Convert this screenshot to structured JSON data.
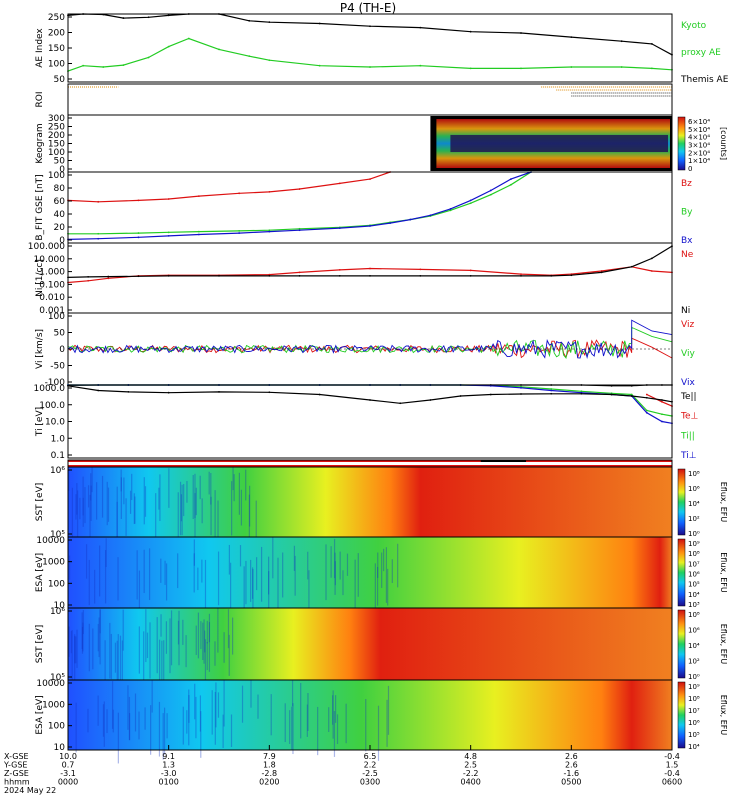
{
  "title": "P4 (TH-E)",
  "footer": {
    "row_labels": [
      "X-GSE",
      "Y-GSE",
      "Z-GSE",
      "hhmm",
      "2024 May 22"
    ],
    "columns": [
      [
        "10.0",
        "0.7",
        "-3.1",
        "0000"
      ],
      [
        "9.1",
        "1.3",
        "-3.0",
        "0100"
      ],
      [
        "7.9",
        "1.8",
        "-2.8",
        "0200"
      ],
      [
        "6.5",
        "2.2",
        "-2.5",
        "0300"
      ],
      [
        "4.8",
        "2.5",
        "-2.2",
        "0400"
      ],
      [
        "2.6",
        "2.6",
        "-1.6",
        "0500"
      ],
      [
        "-0.4",
        "1.5",
        "-0.4",
        "0600"
      ]
    ]
  },
  "colors": {
    "black": "#000000",
    "green": "#22cc22",
    "red": "#dd1111",
    "blue": "#1111cc"
  },
  "chart_data": [
    {
      "id": "ae",
      "type": "line",
      "ylabel": "AE Index",
      "ylim": [
        0,
        250
      ],
      "ticks": [
        "250",
        "200",
        "150",
        "100",
        "50"
      ],
      "x": [
        0,
        0.15,
        0.35,
        0.55,
        0.8,
        1.0,
        1.2,
        1.5,
        1.8,
        2.0,
        2.5,
        3.0,
        3.5,
        4.0,
        4.5,
        5.0,
        5.5,
        5.8,
        6.0
      ],
      "series": [
        {
          "name": "Themis AE",
          "color": "#000000",
          "values": [
            245,
            255,
            248,
            235,
            238,
            245,
            252,
            250,
            225,
            220,
            215,
            205,
            200,
            185,
            180,
            165,
            150,
            140,
            100
          ]
        },
        {
          "name": "Kyoto proxy AE",
          "color": "#22cc22",
          "values": [
            40,
            60,
            55,
            62,
            90,
            130,
            160,
            120,
            95,
            80,
            60,
            55,
            60,
            50,
            50,
            55,
            55,
            50,
            45
          ]
        }
      ],
      "legend": [
        {
          "text": "Kyoto",
          "color": "#22cc22"
        },
        {
          "text": "proxy AE",
          "color": "#22cc22"
        },
        {
          "text": "Themis AE",
          "color": "#000000"
        }
      ]
    },
    {
      "id": "roi",
      "type": "bar",
      "ylabel": "ROI",
      "ticks": [],
      "segments": [
        {
          "x0": 0.0,
          "x1": 0.5,
          "row": 0,
          "color": "#dd8800"
        },
        {
          "x0": 4.7,
          "x1": 6.0,
          "row": 0,
          "color": "#dd8800"
        },
        {
          "x0": 4.85,
          "x1": 6.0,
          "row": 1,
          "color": "#dd8800"
        },
        {
          "x0": 5.0,
          "x1": 6.0,
          "row": 2,
          "color": "#333333"
        },
        {
          "x0": 5.0,
          "x1": 6.0,
          "row": 3,
          "color": "#333333"
        }
      ]
    },
    {
      "id": "keogram",
      "type": "heatmap",
      "ylabel": "Keogram",
      "ylim": [
        0,
        300
      ],
      "ticks": [
        "300",
        "250",
        "200",
        "150",
        "100",
        "50",
        "0"
      ],
      "data_window": [
        3.6,
        6.0
      ],
      "colorbar_ticks": [
        "6×10⁴",
        "5×10⁴",
        "4×10⁴",
        "3×10⁴",
        "2×10⁴",
        "1×10⁴",
        "0"
      ],
      "colorbar_label": "[counts]"
    },
    {
      "id": "bfit",
      "type": "line",
      "ylabel": "B_FIT GSE [nT]",
      "ylim": [
        0,
        100
      ],
      "ticks": [
        "100",
        "80",
        "60",
        "40",
        "20",
        "0"
      ],
      "x": [
        0,
        0.3,
        0.7,
        1.0,
        1.3,
        1.7,
        2.0,
        2.3,
        2.7,
        3.0,
        3.2,
        3.4,
        3.6,
        3.8,
        4.0,
        4.2,
        4.4,
        4.6
      ],
      "series": [
        {
          "name": "Bz",
          "color": "#dd1111",
          "values": [
            60,
            58,
            60,
            62,
            66,
            70,
            72,
            76,
            84,
            90,
            100,
            null,
            null,
            null,
            null,
            null,
            null,
            null
          ]
        },
        {
          "name": "By",
          "color": "#22cc22",
          "values": [
            13,
            13,
            14,
            15,
            16,
            17,
            18,
            20,
            22,
            25,
            29,
            33,
            38,
            46,
            56,
            68,
            82,
            100
          ]
        },
        {
          "name": "Bx",
          "color": "#1111cc",
          "values": [
            5,
            6,
            8,
            10,
            12,
            14,
            16,
            18,
            21,
            24,
            28,
            33,
            39,
            48,
            60,
            74,
            90,
            100
          ]
        }
      ],
      "legend": [
        {
          "text": "Bz",
          "color": "#dd1111"
        },
        {
          "text": "By",
          "color": "#22cc22"
        },
        {
          "text": "Bx",
          "color": "#1111cc"
        }
      ]
    },
    {
      "id": "ni",
      "type": "line",
      "ylabel": "Ni [1/cc]",
      "scale": "log",
      "ylim": [
        0.001,
        100
      ],
      "ticks": [
        "100.000",
        "10.000",
        "1.000",
        "0.100",
        "0.010",
        "0.001"
      ],
      "x": [
        0,
        0.2,
        0.4,
        0.7,
        1.0,
        1.5,
        2.0,
        2.3,
        2.7,
        3.0,
        3.5,
        4.0,
        4.5,
        4.8,
        5.0,
        5.3,
        5.6,
        5.8,
        6.0
      ],
      "series": [
        {
          "name": "Ne",
          "color": "#dd1111",
          "values": [
            0.15,
            0.2,
            0.3,
            0.45,
            0.5,
            0.5,
            0.55,
            0.8,
            1.2,
            1.5,
            1.3,
            1.1,
            0.6,
            0.5,
            0.6,
            1.0,
            2.0,
            1.0,
            0.8
          ]
        },
        {
          "name": "Ni",
          "color": "#000000",
          "values": [
            0.35,
            0.38,
            0.4,
            0.42,
            0.45,
            0.45,
            0.45,
            0.45,
            0.45,
            0.45,
            0.45,
            0.45,
            0.45,
            0.45,
            0.5,
            0.8,
            2.0,
            8.0,
            60.0
          ]
        }
      ],
      "legend": [
        {
          "text": "Ne",
          "color": "#dd1111"
        },
        {
          "text": "Ni",
          "color": "#000000"
        }
      ]
    },
    {
      "id": "vi",
      "type": "line",
      "ylabel": "Vi [km/s]",
      "ylim": [
        -100,
        100
      ],
      "ticks": [
        "100",
        "50",
        "0",
        "-50",
        "-100"
      ],
      "noisy": {
        "amplitude": 10,
        "big_amplitude": 25,
        "big_from": 4.2,
        "end_start": 5.6
      },
      "series": [
        {
          "name": "Viz",
          "color": "#dd1111",
          "end_values": [
            30,
            5,
            -25
          ]
        },
        {
          "name": "Viy",
          "color": "#22cc22",
          "end_values": [
            60,
            35,
            20
          ]
        },
        {
          "name": "Vix",
          "color": "#1111cc",
          "end_values": [
            80,
            50,
            40
          ]
        }
      ],
      "legend": [
        {
          "text": "Viz",
          "color": "#dd1111"
        },
        {
          "text": "Viy",
          "color": "#22cc22"
        },
        {
          "text": "Vix",
          "color": "#1111cc"
        }
      ]
    },
    {
      "id": "ti",
      "type": "line",
      "ylabel": "Ti [eV]",
      "scale": "log",
      "ylim": [
        0.1,
        1000
      ],
      "ticks": [
        "1000.0",
        "100.0",
        "10.0",
        "1.0",
        "0.1"
      ],
      "x": [
        0,
        0.3,
        0.6,
        1.0,
        1.5,
        2.0,
        2.5,
        3.0,
        3.3,
        3.6,
        3.9,
        4.2,
        4.5,
        4.8,
        5.1,
        5.4,
        5.6,
        5.75,
        5.9,
        6.0
      ],
      "series": [
        {
          "name": "Te||",
          "color": "#000000",
          "values": [
            950,
            1300,
            1400,
            1300,
            1250,
            1250,
            1250,
            1250,
            1250,
            1250,
            1250,
            1250,
            1200,
            1100,
            1000,
            900,
            900,
            1400,
            1500,
            1500
          ]
        },
        {
          "name": "Te⊥",
          "color": "#dd1111",
          "values": [
            null,
            null,
            null,
            null,
            null,
            null,
            null,
            null,
            null,
            null,
            null,
            null,
            null,
            null,
            null,
            null,
            null,
            300,
            120,
            70
          ]
        },
        {
          "name": "Ti||",
          "color": "#22cc22",
          "values": [
            1300,
            1300,
            1300,
            1300,
            1300,
            1300,
            1250,
            1250,
            1250,
            1200,
            1100,
            950,
            800,
            600,
            450,
            350,
            300,
            40,
            25,
            20
          ]
        },
        {
          "name": "Ti⊥",
          "color": "#1111cc",
          "values": [
            1300,
            1300,
            1300,
            1300,
            1300,
            1300,
            1250,
            1250,
            1250,
            1200,
            1100,
            900,
            700,
            500,
            380,
            300,
            250,
            30,
            10,
            8
          ]
        },
        {
          "name": "Ti(black)",
          "color": "#000000",
          "values": [
            900,
            500,
            420,
            380,
            420,
            400,
            300,
            150,
            100,
            150,
            250,
            300,
            320,
            330,
            330,
            300,
            250,
            200,
            150,
            120
          ]
        }
      ],
      "legend": [
        {
          "text": "Te||",
          "color": "#000000"
        },
        {
          "text": "Te⊥",
          "color": "#dd1111"
        },
        {
          "text": "Ti||",
          "color": "#22cc22"
        },
        {
          "text": "Ti⊥",
          "color": "#1111cc"
        }
      ]
    },
    {
      "id": "flag",
      "type": "bar",
      "ylabel": "",
      "ticks": [],
      "bar_color": "#dd1111",
      "marks": [
        {
          "x0": 4.1,
          "x1": 4.55
        }
      ]
    },
    {
      "id": "sst_omni",
      "type": "heatmap",
      "ylabel": "SST [eV]",
      "ticks": [
        "10⁶",
        "10⁵"
      ],
      "hot_from": 3.2,
      "colorbar_ticks": [
        "10⁸",
        "10⁶",
        "10⁴",
        "10²",
        "10⁰"
      ],
      "colorbar_label": "Eflux, EFU"
    },
    {
      "id": "esa_omni",
      "type": "heatmap",
      "ylabel": "ESA [eV]",
      "ticks": [
        "10000",
        "1000",
        "100",
        "10"
      ],
      "hot_from": 5.6,
      "colorbar_ticks": [
        "10⁹",
        "10⁸",
        "10⁷",
        "10⁶",
        "10⁵",
        "10⁴",
        "10³"
      ],
      "colorbar_label": "Eflux, EFU"
    },
    {
      "id": "sst_pf",
      "type": "heatmap",
      "ylabel": "SST [eV]",
      "ticks": [
        "10⁶",
        "10⁵"
      ],
      "hot_from": 2.8,
      "colorbar_ticks": [
        "10⁸",
        "10⁶",
        "10⁴",
        "10²",
        "10⁰"
      ],
      "colorbar_label": "Eflux, EFU"
    },
    {
      "id": "esa_pf",
      "type": "heatmap",
      "ylabel": "ESA [eV]",
      "ticks": [
        "10000",
        "1000",
        "100",
        "10"
      ],
      "hot_from": 5.3,
      "colorbar_ticks": [
        "10⁹",
        "10⁸",
        "10⁷",
        "10⁶",
        "10⁵",
        "10⁴"
      ],
      "colorbar_label": "Eflux, EFU"
    }
  ]
}
